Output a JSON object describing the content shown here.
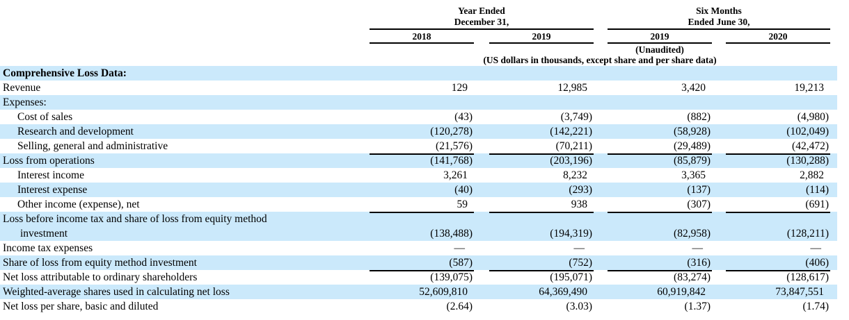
{
  "table": {
    "header": {
      "group1_line1": "Year Ended",
      "group1_line2": "December 31,",
      "group2_line1": "Six Months",
      "group2_line2": "Ended June 30,",
      "years": [
        "2018",
        "2019",
        "2019",
        "2020"
      ],
      "unaudited": "(Unaudited)",
      "note": "(US dollars in thousands, except share and per share data)"
    },
    "colors": {
      "row_highlight": "#cbe9fb"
    },
    "rows": [
      {
        "label": "Comprehensive Loss Data:",
        "values": [
          "",
          "",
          "",
          ""
        ]
      },
      {
        "label": "Revenue",
        "values": [
          "129",
          "12,985",
          "3,420",
          "19,213"
        ]
      },
      {
        "label": "Expenses:",
        "values": [
          "",
          "",
          "",
          ""
        ]
      },
      {
        "label": "Cost of sales",
        "values": [
          "(43)",
          "(3,749)",
          "(882)",
          "(4,980)"
        ]
      },
      {
        "label": "Research and development",
        "values": [
          "(120,278)",
          "(142,221)",
          "(58,928)",
          "(102,049)"
        ]
      },
      {
        "label": "Selling, general and administrative",
        "values": [
          "(21,576)",
          "(70,211)",
          "(29,489)",
          "(42,472)"
        ]
      },
      {
        "label": "Loss from operations",
        "values": [
          "(141,768)",
          "(203,196)",
          "(85,879)",
          "(130,288)"
        ]
      },
      {
        "label": "Interest income",
        "values": [
          "3,261",
          "8,232",
          "3,365",
          "2,882"
        ]
      },
      {
        "label": "Interest expense",
        "values": [
          "(40)",
          "(293)",
          "(137)",
          "(114)"
        ]
      },
      {
        "label": "Other income (expense), net",
        "values": [
          "59",
          "938",
          "(307)",
          "(691)"
        ]
      },
      {
        "label": "Loss before income tax and share of loss from equity method",
        "label2": "investment",
        "values": [
          "(138,488)",
          "(194,319)",
          "(82,958)",
          "(128,211)"
        ]
      },
      {
        "label": "Income tax expenses",
        "values": [
          "—",
          "—",
          "—",
          "—"
        ]
      },
      {
        "label": "Share of loss from equity method investment",
        "values": [
          "(587)",
          "(752)",
          "(316)",
          "(406)"
        ]
      },
      {
        "label": "Net loss attributable to ordinary shareholders",
        "values": [
          "(139,075)",
          "(195,071)",
          "(83,274)",
          "(128,617)"
        ]
      },
      {
        "label": "Weighted-average shares used in calculating net loss",
        "values": [
          "52,609,810",
          "64,369,490",
          "60,919,842",
          "73,847,551"
        ]
      },
      {
        "label": "Net loss per share, basic and diluted",
        "values": [
          "(2.64)",
          "(3.03)",
          "(1.37)",
          "(1.74)"
        ]
      }
    ]
  }
}
